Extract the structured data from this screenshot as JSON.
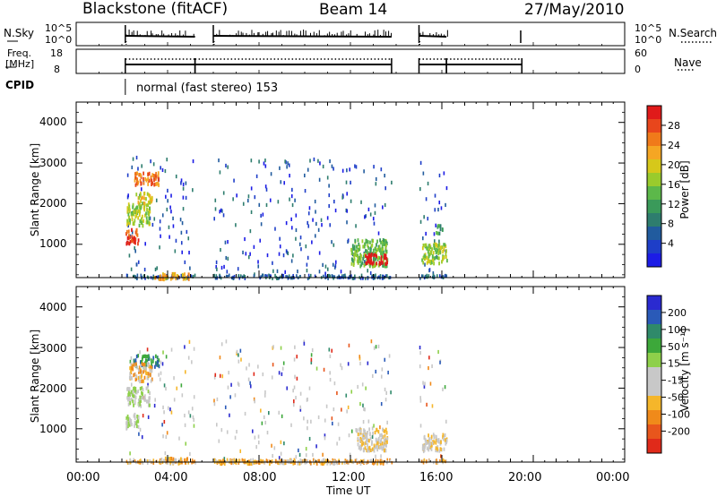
{
  "header": {
    "station": "Blackstone (fitACF)",
    "beam": "Beam 14",
    "date": "27/May/2010"
  },
  "nsky": {
    "label": "N.Sky",
    "ticks": [
      "10^5",
      "10^0"
    ],
    "right_label": "N.Search",
    "segments": [
      [
        2.15,
        5.2
      ],
      [
        6.0,
        13.8
      ],
      [
        15.0,
        16.2
      ],
      [
        19.45,
        19.5
      ]
    ]
  },
  "freq": {
    "label_line1": "Freq.",
    "label_line2": "[MHz]",
    "ticks": [
      "18",
      "8"
    ],
    "right_ticks": [
      "60",
      "0"
    ],
    "right_label": "Nave",
    "segments": [
      [
        2.15,
        5.2
      ],
      [
        5.2,
        13.8
      ],
      [
        15.0,
        16.2
      ],
      [
        16.2,
        19.5
      ]
    ]
  },
  "cpid": {
    "label": "CPID",
    "mode": "normal (fast stereo) 153"
  },
  "chart_data": [
    {
      "type": "heatmap",
      "name": "power",
      "ylabel": "Slant Range [km]",
      "ylim": [
        180,
        4500
      ],
      "yticks": [
        "4000",
        "3000",
        "2000",
        "1000"
      ],
      "xlim": [
        0,
        24
      ],
      "colorbar": {
        "label": "Power [dB]",
        "ticks": [
          "28",
          "24",
          "20",
          "16",
          "12",
          "8",
          "4"
        ],
        "min": 0,
        "max": 31,
        "colors": [
          "#1c1ce6",
          "#1e3ec8",
          "#215b9e",
          "#2e7d6e",
          "#3a9a5a",
          "#5cb84a",
          "#9acb2c",
          "#d6c81a",
          "#f5a623",
          "#f07a1a",
          "#e8461c",
          "#e01a1a"
        ]
      },
      "blobs": [
        {
          "t": [
            2.15,
            2.7
          ],
          "r": [
            1050,
            1400
          ],
          "level": 10
        },
        {
          "t": [
            2.2,
            3.2
          ],
          "r": [
            1500,
            2050
          ],
          "level": 6
        },
        {
          "t": [
            2.5,
            3.6
          ],
          "r": [
            2500,
            2800
          ],
          "level": 9
        },
        {
          "t": [
            2.6,
            3.3
          ],
          "r": [
            2050,
            2300
          ],
          "level": 7
        },
        {
          "t": [
            12.0,
            13.6
          ],
          "r": [
            500,
            1150
          ],
          "level": 5
        },
        {
          "t": [
            12.6,
            13.6
          ],
          "r": [
            550,
            800
          ],
          "level": 13
        },
        {
          "t": [
            15.1,
            16.2
          ],
          "r": [
            550,
            1050
          ],
          "level": 6
        },
        {
          "t": [
            15.7,
            16.0
          ],
          "r": [
            1300,
            1500
          ],
          "level": 4
        },
        {
          "t": [
            3.4,
            4.9
          ],
          "r": [
            180,
            320
          ],
          "level": 8
        }
      ],
      "windows": [
        [
          2.15,
          5.2
        ],
        [
          6.0,
          13.8
        ],
        [
          15.0,
          16.2
        ]
      ]
    },
    {
      "type": "heatmap",
      "name": "velocity",
      "ylabel": "Slant Range [km]",
      "ylim": [
        180,
        4500
      ],
      "yticks": [
        "4000",
        "3000",
        "2000",
        "1000"
      ],
      "xlim": [
        0,
        24
      ],
      "xticks": [
        "00:00",
        "04:00",
        "08:00",
        "12:00",
        "16:00",
        "20:00",
        "00:00"
      ],
      "xlabel": "Time UT",
      "colorbar": {
        "label": "Velocity [m s⁻¹]",
        "ticks": [
          "200",
          "100",
          "50",
          "15",
          "-15",
          "-50",
          "-100",
          "-200"
        ],
        "colors": [
          "#2a2ad0",
          "#2a5ab8",
          "#2f8a6a",
          "#3da83a",
          "#8ed04a",
          "#c8c8c8",
          "#c8c8c8",
          "#f5b62a",
          "#f08a1a",
          "#e8561c",
          "#e02a1a"
        ]
      },
      "blobs": [
        {
          "t": [
            2.15,
            2.7
          ],
          "r": [
            1050,
            1400
          ],
          "level": 5
        },
        {
          "t": [
            2.2,
            3.2
          ],
          "r": [
            1600,
            2050
          ],
          "level": 5
        },
        {
          "t": [
            2.5,
            3.6
          ],
          "r": [
            2550,
            2850
          ],
          "level": 2
        },
        {
          "t": [
            2.3,
            3.3
          ],
          "r": [
            2200,
            2650
          ],
          "level": 7
        },
        {
          "t": [
            12.2,
            13.6
          ],
          "r": [
            500,
            1050
          ],
          "level": 6
        },
        {
          "t": [
            15.1,
            16.2
          ],
          "r": [
            500,
            900
          ],
          "level": 6
        },
        {
          "t": [
            3.6,
            4.9
          ],
          "r": [
            180,
            330
          ],
          "level": 7
        },
        {
          "t": [
            6.2,
            13.6
          ],
          "r": [
            180,
            260
          ],
          "level": 7
        }
      ],
      "windows": [
        [
          2.15,
          5.2
        ],
        [
          6.0,
          13.8
        ],
        [
          15.0,
          16.2
        ]
      ]
    }
  ]
}
